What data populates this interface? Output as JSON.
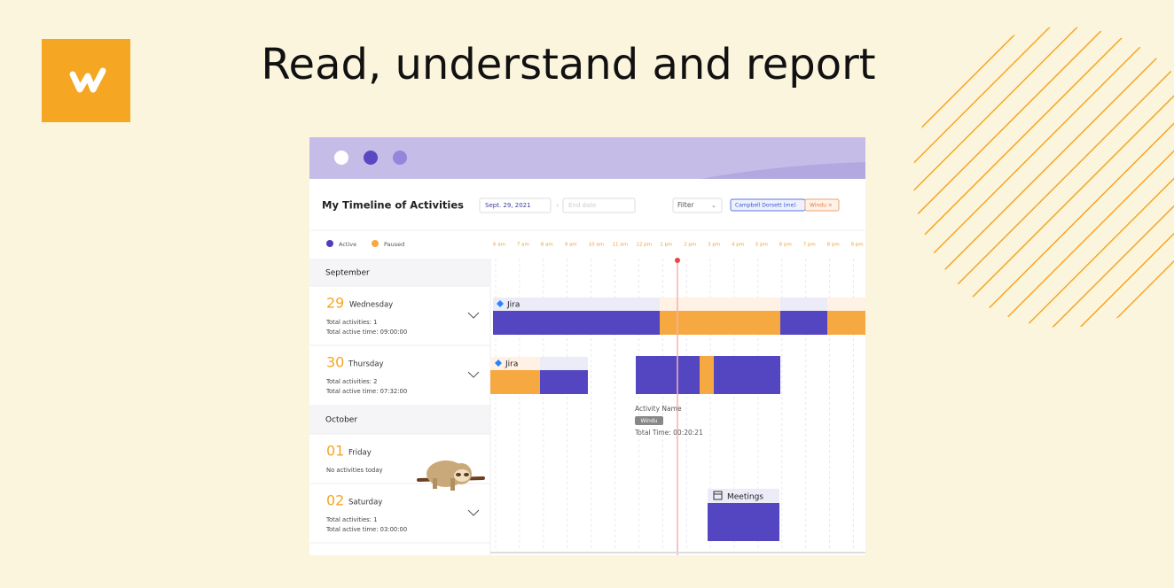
{
  "header": {
    "title": "Read, understand and report"
  },
  "app": {
    "title": "My Timeline of Activities",
    "start_date": "Sept. 29, 2021",
    "end_date_placeholder": "End date",
    "filter": "Filter",
    "chips": [
      "Campbell Dorsett (me)",
      "Windu ×"
    ],
    "legend": [
      "Active",
      "Paused"
    ],
    "hours": [
      "6 am",
      "7 am",
      "8 am",
      "9 am",
      "10 am",
      "11 am",
      "12 pm",
      "1 pm",
      "2 pm",
      "3 pm",
      "4 pm",
      "5 pm",
      "6 pm",
      "7 pm",
      "8 pm",
      "9 pm"
    ],
    "months": [
      "September",
      "October"
    ],
    "days": [
      {
        "date": "29",
        "weekday": "Wednesday",
        "lines": [
          "Total activities: 1",
          "Total active time: 09:00:00"
        ]
      },
      {
        "date": "30",
        "weekday": "Thursday",
        "lines": [
          "Total activities: 2",
          "Total active time: 07:32:00"
        ]
      },
      {
        "date": "01",
        "weekday": "Friday",
        "lines": [
          "No activities today"
        ]
      },
      {
        "date": "02",
        "weekday": "Saturday",
        "lines": [
          "Total activities: 1",
          "Total active time: 03:00:00"
        ]
      }
    ],
    "timeline": {
      "labels": [
        "Jira",
        "Jira",
        "Meetings"
      ],
      "tooltip": {
        "name": "Activity Name",
        "tag": "Windu",
        "total": "Total Time: 00:20:21"
      }
    }
  }
}
